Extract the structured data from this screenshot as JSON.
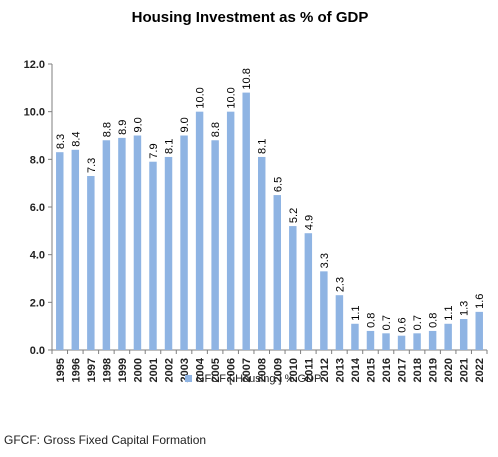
{
  "chart_data": {
    "type": "bar",
    "title": "Housing Investment as % of GDP",
    "categories": [
      "1995",
      "1996",
      "1997",
      "1998",
      "1999",
      "2000",
      "2001",
      "2002",
      "2003",
      "2004",
      "2005",
      "2006",
      "2007",
      "2008",
      "2009",
      "2010",
      "2011",
      "2012",
      "2013",
      "2014",
      "2015",
      "2016",
      "2017",
      "2018",
      "2019",
      "2020",
      "2021",
      "2022"
    ],
    "series": [
      {
        "name": "GFCF [ Housing ] % GDP",
        "values": [
          8.3,
          8.4,
          7.3,
          8.8,
          8.9,
          9.0,
          7.9,
          8.1,
          9.0,
          10.0,
          8.8,
          10.0,
          10.8,
          8.1,
          6.5,
          5.2,
          4.9,
          3.3,
          2.3,
          1.1,
          0.8,
          0.7,
          0.6,
          0.7,
          0.8,
          1.1,
          1.3,
          1.6
        ],
        "labels": [
          "8.3",
          "8.4",
          "7.3",
          "8.8",
          "8.9",
          "9.0",
          "7.9",
          "8.1",
          "9.0",
          "10.0",
          "8.8",
          "10.0",
          "10.8",
          "8.1",
          "6.5",
          "5.2",
          "4.9",
          "3.3",
          "2.3",
          "1.1",
          "0.8",
          "0.7",
          "0.6",
          "0.7",
          "0.8",
          "1.1",
          "1.3",
          "1.6"
        ],
        "color": "#8fb4e3"
      }
    ],
    "xlabel": "",
    "ylabel": "",
    "ylim": [
      0,
      12
    ],
    "yticks": [
      "0.0",
      "2.0",
      "4.0",
      "6.0",
      "8.0",
      "10.0",
      "12.0"
    ],
    "grid": false,
    "legend_position": "bottom"
  },
  "footnote": "GFCF: Gross Fixed Capital Formation"
}
